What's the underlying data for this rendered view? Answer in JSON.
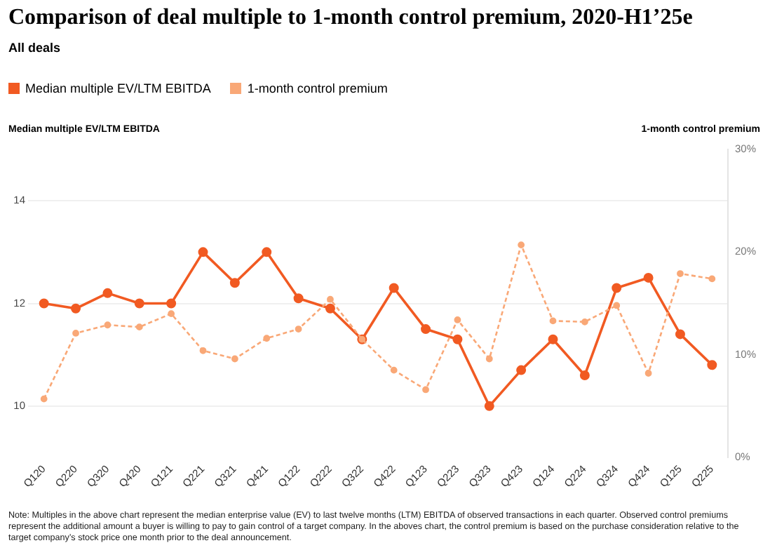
{
  "chart_data": {
    "type": "line",
    "title": "Comparison of deal multiple to 1-month control premium, 2020-H1’25e",
    "subtitle": "All deals",
    "ylabel": "Median multiple EV/LTM EBITDA",
    "y2label": "1-month control premium",
    "categories": [
      "Q120",
      "Q220",
      "Q320",
      "Q420",
      "Q121",
      "Q221",
      "Q321",
      "Q421",
      "Q122",
      "Q222",
      "Q322",
      "Q422",
      "Q123",
      "Q223",
      "Q323",
      "Q423",
      "Q124",
      "Q224",
      "Q324",
      "Q424",
      "Q125",
      "Q225"
    ],
    "series": [
      {
        "name": "Median multiple EV/LTM EBITDA",
        "color": "#f15a22",
        "line_style": "solid",
        "values": [
          12.0,
          11.9,
          12.2,
          12.0,
          12.0,
          13.0,
          12.4,
          13.0,
          12.1,
          11.9,
          11.3,
          12.3,
          11.5,
          11.3,
          10.0,
          10.7,
          11.3,
          10.6,
          12.3,
          12.5,
          11.4,
          10.8
        ]
      },
      {
        "name": "1-month control premium",
        "color": "#f9a877",
        "axis": "y2",
        "line_style": "dashed",
        "values": [
          5.7,
          12.1,
          12.9,
          12.7,
          14.0,
          10.4,
          9.6,
          11.6,
          12.5,
          15.4,
          11.5,
          8.5,
          6.6,
          13.4,
          9.6,
          20.7,
          13.3,
          13.2,
          14.8,
          8.2,
          17.9,
          17.4
        ]
      }
    ],
    "ylim": [
      9,
      15
    ],
    "yticks": [
      10,
      12,
      14
    ],
    "y2lim": [
      0,
      30
    ],
    "y2ticks": [
      {
        "value": 0,
        "label": "0%"
      },
      {
        "value": 10,
        "label": "10%"
      },
      {
        "value": 20,
        "label": "20%"
      },
      {
        "value": 30,
        "label": "30%"
      }
    ],
    "grid": "y",
    "legend": "top left",
    "marker": "circle",
    "annotations": [
      "Note: Multiples in the above chart represent the median enterprise value (EV) to last twelve months (LTM) EBITDA of observed transactions in each quarter. Observed control premiums represent the additional amount a buyer is willing to pay to gain control of a target company. In the aboves chart, the control premium is based on the purchase consideration relative to the target company’s stock price one month prior to the deal announcement."
    ]
  }
}
